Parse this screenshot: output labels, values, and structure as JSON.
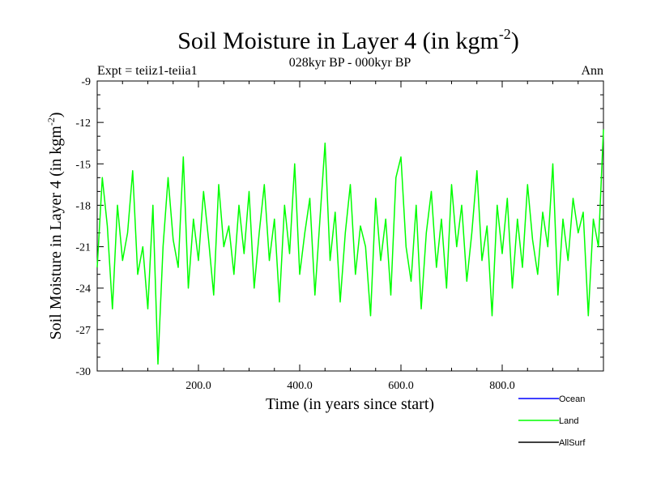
{
  "chart_data": {
    "type": "line",
    "title": "Soil Moisture in Layer 4 (in kgm",
    "title_superscript": "-2",
    "title_suffix": ")",
    "subtitle": "028kyr BP - 000kyr BP",
    "left_label": "Expt = teiiz1-teiia1",
    "right_label": "Ann",
    "xlabel": "Time (in years since start)",
    "ylabel": "Soil Moisture in Layer 4 (in kgm",
    "ylabel_superscript": "-2",
    "ylabel_suffix": ")",
    "xlim": [
      0,
      1000
    ],
    "ylim": [
      -30,
      -9
    ],
    "x_ticks": [
      200,
      400,
      600,
      800
    ],
    "x_tick_labels": [
      "200.0",
      "400.0",
      "600.0",
      "800.0"
    ],
    "y_ticks": [
      -30,
      -27,
      -24,
      -21,
      -18,
      -15,
      -12,
      -9
    ],
    "y_tick_labels": [
      "-30",
      "-27",
      "-24",
      "-21",
      "-18",
      "-15",
      "-12",
      "-9"
    ],
    "legend_position": "bottom-right",
    "series": [
      {
        "name": "Ocean",
        "color": "#0000ff",
        "values": []
      },
      {
        "name": "Land",
        "color": "#00ff00",
        "x": [
          0,
          10,
          20,
          30,
          40,
          50,
          60,
          70,
          80,
          90,
          100,
          110,
          120,
          130,
          140,
          150,
          160,
          170,
          180,
          190,
          200,
          210,
          220,
          230,
          240,
          250,
          260,
          270,
          280,
          290,
          300,
          310,
          320,
          330,
          340,
          350,
          360,
          370,
          380,
          390,
          400,
          410,
          420,
          430,
          440,
          450,
          460,
          470,
          480,
          490,
          500,
          510,
          520,
          530,
          540,
          550,
          560,
          570,
          580,
          590,
          600,
          610,
          620,
          630,
          640,
          650,
          660,
          670,
          680,
          690,
          700,
          710,
          720,
          730,
          740,
          750,
          760,
          770,
          780,
          790,
          800,
          810,
          820,
          830,
          840,
          850,
          860,
          870,
          880,
          890,
          900,
          910,
          920,
          930,
          940,
          950,
          960,
          970,
          980,
          990,
          1000
        ],
        "values": [
          -22.5,
          -16,
          -19.5,
          -25.5,
          -18,
          -22,
          -20,
          -15.5,
          -23,
          -21,
          -25.5,
          -18,
          -29.5,
          -21,
          -16,
          -20.5,
          -22.5,
          -14.5,
          -24,
          -19,
          -22,
          -17,
          -20.5,
          -24.5,
          -16.5,
          -21,
          -19.5,
          -23,
          -18,
          -21.5,
          -17,
          -24,
          -20,
          -16.5,
          -22,
          -19,
          -25,
          -18,
          -21.5,
          -15,
          -23,
          -20,
          -17.5,
          -24.5,
          -19,
          -13.5,
          -22,
          -18.5,
          -25,
          -20,
          -16.5,
          -23,
          -19.5,
          -21,
          -26,
          -17.5,
          -22,
          -19,
          -24.5,
          -16,
          -14.5,
          -21,
          -23.5,
          -18,
          -25.5,
          -20,
          -17,
          -22.5,
          -19,
          -24,
          -16.5,
          -21,
          -18,
          -23.5,
          -20,
          -15.5,
          -22,
          -19.5,
          -26,
          -18,
          -21.5,
          -17.5,
          -24,
          -19,
          -22.5,
          -16.5,
          -20.5,
          -23,
          -18.5,
          -21,
          -15,
          -24.5,
          -19,
          -22,
          -17.5,
          -20,
          -18.5,
          -26,
          -19,
          -21,
          -12.5
        ]
      },
      {
        "name": "AllSurf",
        "color": "#000000",
        "values": []
      }
    ]
  }
}
